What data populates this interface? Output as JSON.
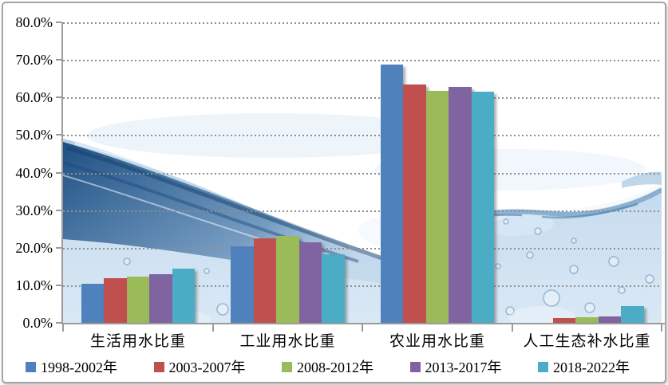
{
  "figure": {
    "background_image": "water-splash-photo",
    "background_palette": [
      "#ffffff",
      "#e9f2fa",
      "#cfe2f2",
      "#7aa3c9",
      "#1d4f80"
    ],
    "frame_color": "#a6a6a6",
    "gridline_color": "#8f8f8f",
    "axis_color": "#9b9b9b"
  },
  "chart_data": {
    "type": "bar",
    "title": "",
    "xlabel": "",
    "ylabel": "",
    "categories": [
      "生活用水比重",
      "工业用水比重",
      "农业用水比重",
      "人工生态补水比重"
    ],
    "series": [
      {
        "name": "1998-2002年",
        "color": "#4F81BD",
        "values": [
          10.3,
          20.3,
          68.7,
          0.0
        ]
      },
      {
        "name": "2003-2007年",
        "color": "#C0504D",
        "values": [
          11.9,
          22.4,
          63.5,
          1.3
        ]
      },
      {
        "name": "2008-2012年",
        "color": "#9BBB59",
        "values": [
          12.4,
          23.1,
          61.7,
          1.5
        ]
      },
      {
        "name": "2013-2017年",
        "color": "#8064A2",
        "values": [
          13.0,
          21.5,
          62.8,
          1.7
        ]
      },
      {
        "name": "2018-2022年",
        "color": "#4BACC6",
        "values": [
          14.5,
          18.2,
          61.6,
          4.5
        ]
      }
    ],
    "ylim": [
      0,
      80
    ],
    "ytick_step": 10,
    "ytick_labels": [
      "0.0%",
      "10.0%",
      "20.0%",
      "30.0%",
      "40.0%",
      "50.0%",
      "60.0%",
      "70.0%",
      "80.0%"
    ],
    "grid": "horizontal-dotted",
    "legend_position": "bottom"
  }
}
